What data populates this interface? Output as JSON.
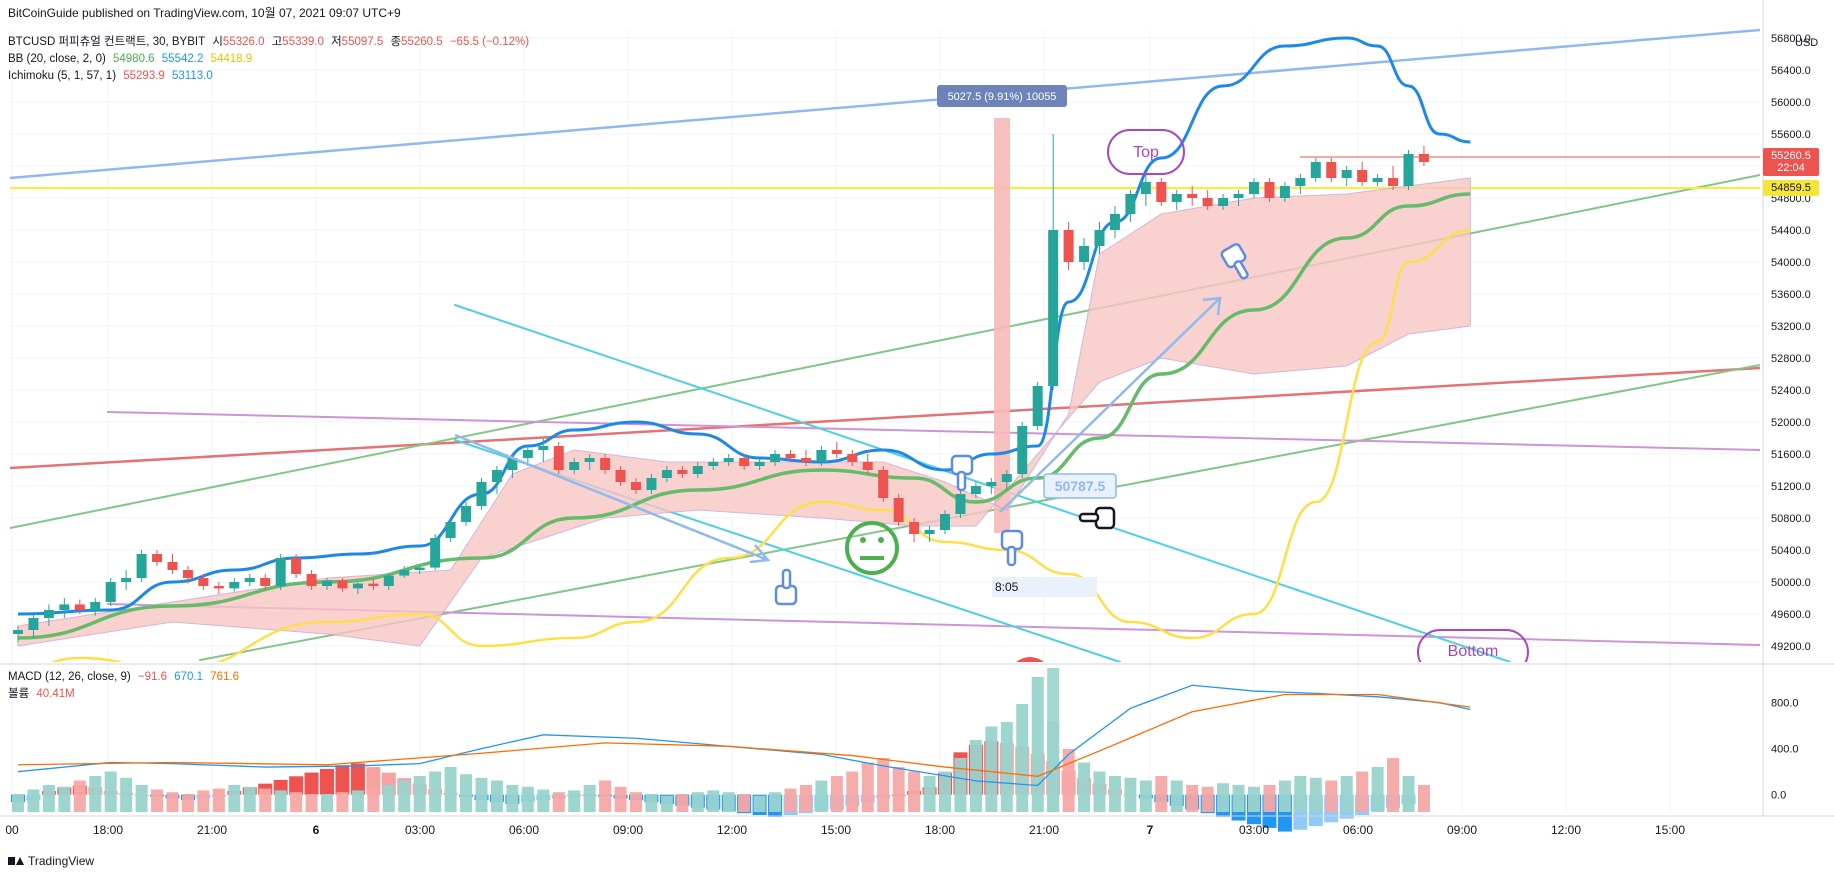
{
  "header": {
    "publish_line": "BitCoinGuide published on TradingView.com, 10월 07, 2021 09:07 UTC+9",
    "symbol": "BTCUSD 퍼피츄얼 컨트랙트, 30, BYBIT",
    "ohlc": {
      "o_label": "시",
      "o": "55326.0",
      "h_label": "고",
      "h": "55339.0",
      "l_label": "저",
      "l": "55097.5",
      "c_label": "종",
      "c": "55260.5",
      "change": "−65.5 (−0.12%)"
    },
    "bb": {
      "label": "BB (20, close, 2, 0)",
      "v1": "54980.6",
      "v2": "55542.2",
      "v3": "54418.9"
    },
    "ichimoku": {
      "label": "Ichimoku (5, 1, 57, 1)",
      "v1": "55293.9",
      "v2": "53113.0"
    },
    "macd": {
      "label": "MACD (12, 26, close, 9)",
      "v1": "−91.6",
      "v2": "670.1",
      "v3": "761.6"
    },
    "volume": {
      "label": "볼륨",
      "v1": "40.41M"
    }
  },
  "footer": {
    "brand": "TradingView"
  },
  "colors": {
    "up": "#26a69a",
    "down": "#ef5350",
    "bb_mid": "#5cb85c",
    "bb_upper": "#2196f3",
    "bb_lower": "#ffeb3b",
    "ichimoku_a": "#ef5350",
    "ichimoku_b": "#2196f3",
    "macd_line": "#2196f3",
    "signal_line": "#ff6d00",
    "cloud": "#f8c6c4",
    "price_tag": "#ef5350",
    "level_tag": "#f2e13a"
  },
  "chart_data": {
    "type": "candlestick",
    "y_axis": {
      "unit": "USD",
      "ticks": [
        "56800.0",
        "56400.0",
        "56000.0",
        "55600.0",
        "55200.0",
        "54800.0",
        "54400.0",
        "54000.0",
        "53600.0",
        "53200.0",
        "52800.0",
        "52400.0",
        "52000.0",
        "51600.0",
        "51200.0",
        "50800.0",
        "50400.0",
        "50000.0",
        "49600.0",
        "49200.0"
      ],
      "range": [
        49000,
        56900
      ]
    },
    "macd_axis": {
      "ticks": [
        "800.0",
        "400.0",
        "0.0"
      ]
    },
    "x_axis": {
      "ticks": [
        "00",
        "18:00",
        "21:00",
        "6",
        "03:00",
        "06:00",
        "09:00",
        "12:00",
        "15:00",
        "18:00",
        "21:00",
        "7",
        "03:00",
        "06:00",
        "09:00",
        "12:00",
        "15:00"
      ]
    },
    "last_price": {
      "value": "55260.5",
      "countdown": "22:04"
    },
    "level_line": {
      "value": "54859.5"
    },
    "annotations": {
      "measure_label": "5027.5 (9.91%) 10055",
      "price_label": "50787.5",
      "time_label": "8:05",
      "top_label": "Top",
      "bottom_label": "Bottom"
    },
    "candles": [
      [
        49350,
        49450,
        49250,
        49400
      ],
      [
        49400,
        49600,
        49300,
        49550
      ],
      [
        49550,
        49720,
        49450,
        49650
      ],
      [
        49650,
        49800,
        49550,
        49720
      ],
      [
        49720,
        49780,
        49600,
        49650
      ],
      [
        49650,
        49800,
        49580,
        49750
      ],
      [
        49750,
        50050,
        49700,
        50000
      ],
      [
        50000,
        50150,
        49900,
        50050
      ],
      [
        50050,
        50400,
        50000,
        50350
      ],
      [
        50350,
        50400,
        50200,
        50250
      ],
      [
        50250,
        50350,
        50100,
        50150
      ],
      [
        50150,
        50200,
        49980,
        50050
      ],
      [
        50050,
        50100,
        49900,
        49950
      ],
      [
        49950,
        50000,
        49850,
        49920
      ],
      [
        49920,
        50050,
        49880,
        50000
      ],
      [
        50000,
        50100,
        49950,
        50050
      ],
      [
        50050,
        50100,
        49900,
        49950
      ],
      [
        49950,
        50350,
        49900,
        50300
      ],
      [
        50300,
        50350,
        50050,
        50100
      ],
      [
        50100,
        50150,
        49900,
        49950
      ],
      [
        49950,
        50050,
        49900,
        50020
      ],
      [
        50020,
        50050,
        49880,
        49920
      ],
      [
        49920,
        50000,
        49850,
        49980
      ],
      [
        49980,
        50050,
        49900,
        49950
      ],
      [
        49950,
        50100,
        49900,
        50080
      ],
      [
        50080,
        50200,
        50050,
        50150
      ],
      [
        50150,
        50200,
        50100,
        50180
      ],
      [
        50180,
        50600,
        50150,
        50550
      ],
      [
        50550,
        50800,
        50500,
        50750
      ],
      [
        50750,
        51000,
        50700,
        50950
      ],
      [
        50950,
        51300,
        50900,
        51250
      ],
      [
        51250,
        51450,
        51100,
        51400
      ],
      [
        51400,
        51600,
        51300,
        51550
      ],
      [
        51550,
        51700,
        51450,
        51650
      ],
      [
        51650,
        51800,
        51500,
        51700
      ],
      [
        51700,
        51750,
        51350,
        51400
      ],
      [
        51400,
        51550,
        51350,
        51500
      ],
      [
        51500,
        51600,
        51400,
        51550
      ],
      [
        51550,
        51600,
        51350,
        51400
      ],
      [
        51400,
        51450,
        51200,
        51250
      ],
      [
        51250,
        51300,
        51100,
        51150
      ],
      [
        51150,
        51350,
        51100,
        51300
      ],
      [
        51300,
        51450,
        51250,
        51400
      ],
      [
        51400,
        51450,
        51300,
        51350
      ],
      [
        51350,
        51500,
        51300,
        51450
      ],
      [
        51450,
        51550,
        51400,
        51500
      ],
      [
        51500,
        51600,
        51450,
        51550
      ],
      [
        51550,
        51600,
        51400,
        51450
      ],
      [
        51450,
        51550,
        51400,
        51500
      ],
      [
        51500,
        51650,
        51450,
        51600
      ],
      [
        51600,
        51650,
        51500,
        51550
      ],
      [
        51550,
        51650,
        51450,
        51500
      ],
      [
        51500,
        51700,
        51450,
        51650
      ],
      [
        51650,
        51750,
        51550,
        51600
      ],
      [
        51600,
        51650,
        51450,
        51500
      ],
      [
        51500,
        51600,
        51350,
        51400
      ],
      [
        51400,
        51450,
        51000,
        51050
      ],
      [
        51050,
        51100,
        50700,
        50750
      ],
      [
        50750,
        50800,
        50500,
        50600
      ],
      [
        50600,
        50700,
        50500,
        50650
      ],
      [
        50650,
        50900,
        50600,
        50850
      ],
      [
        50850,
        51150,
        50800,
        51100
      ],
      [
        51100,
        51250,
        51050,
        51200
      ],
      [
        51200,
        51300,
        51100,
        51250
      ],
      [
        51250,
        51400,
        51150,
        51350
      ],
      [
        51350,
        52000,
        51300,
        51950
      ],
      [
        51950,
        52500,
        51900,
        52450
      ],
      [
        52450,
        55600,
        52400,
        54400
      ],
      [
        54400,
        54500,
        53900,
        54000
      ],
      [
        54000,
        54300,
        53900,
        54200
      ],
      [
        54200,
        54500,
        54100,
        54400
      ],
      [
        54400,
        54700,
        54300,
        54600
      ],
      [
        54600,
        54900,
        54500,
        54850
      ],
      [
        54850,
        55100,
        54700,
        55000
      ],
      [
        55000,
        55050,
        54700,
        54750
      ],
      [
        54750,
        54900,
        54650,
        54850
      ],
      [
        54850,
        54950,
        54700,
        54800
      ],
      [
        54800,
        54900,
        54650,
        54700
      ],
      [
        54700,
        54850,
        54650,
        54800
      ],
      [
        54800,
        54900,
        54700,
        54850
      ],
      [
        54850,
        55050,
        54800,
        55000
      ],
      [
        55000,
        55050,
        54750,
        54800
      ],
      [
        54800,
        55000,
        54750,
        54950
      ],
      [
        54950,
        55100,
        54850,
        55050
      ],
      [
        55050,
        55300,
        55000,
        55250
      ],
      [
        55250,
        55300,
        55000,
        55050
      ],
      [
        55050,
        55200,
        54950,
        55150
      ],
      [
        55150,
        55250,
        54950,
        55000
      ],
      [
        55000,
        55100,
        54950,
        55050
      ],
      [
        55050,
        55200,
        54900,
        54950
      ],
      [
        54950,
        55400,
        54900,
        55350
      ],
      [
        55350,
        55450,
        55200,
        55250
      ]
    ],
    "bb_upper": [
      [
        0,
        49600
      ],
      [
        6,
        49650
      ],
      [
        10,
        50000
      ],
      [
        14,
        50150
      ],
      [
        18,
        50300
      ],
      [
        22,
        50350
      ],
      [
        26,
        50450
      ],
      [
        30,
        51100
      ],
      [
        33,
        51700
      ],
      [
        36,
        51900
      ],
      [
        40,
        52000
      ],
      [
        44,
        51850
      ],
      [
        48,
        51550
      ],
      [
        52,
        51500
      ],
      [
        56,
        51650
      ],
      [
        60,
        51400
      ],
      [
        63,
        51600
      ],
      [
        66,
        51700
      ],
      [
        68,
        53500
      ],
      [
        71,
        54500
      ],
      [
        74,
        55300
      ],
      [
        78,
        56200
      ],
      [
        82,
        56700
      ],
      [
        86,
        56800
      ],
      [
        88,
        56700
      ],
      [
        90,
        56200
      ],
      [
        92,
        55600
      ],
      [
        94,
        55500
      ]
    ],
    "bb_mid": [
      [
        0,
        49300
      ],
      [
        10,
        49700
      ],
      [
        20,
        50000
      ],
      [
        30,
        50300
      ],
      [
        36,
        50800
      ],
      [
        44,
        51150
      ],
      [
        52,
        51400
      ],
      [
        58,
        51300
      ],
      [
        62,
        51000
      ],
      [
        66,
        51300
      ],
      [
        70,
        51800
      ],
      [
        74,
        52600
      ],
      [
        80,
        53400
      ],
      [
        86,
        54300
      ],
      [
        90,
        54700
      ],
      [
        94,
        54850
      ]
    ],
    "bb_lower": [
      [
        0,
        48900
      ],
      [
        4,
        49050
      ],
      [
        10,
        48900
      ],
      [
        20,
        49500
      ],
      [
        26,
        49600
      ],
      [
        30,
        49200
      ],
      [
        36,
        49300
      ],
      [
        40,
        49500
      ],
      [
        46,
        50300
      ],
      [
        52,
        51000
      ],
      [
        56,
        50900
      ],
      [
        60,
        50500
      ],
      [
        64,
        50400
      ],
      [
        68,
        50100
      ],
      [
        72,
        49500
      ],
      [
        76,
        49300
      ],
      [
        80,
        49600
      ],
      [
        84,
        51000
      ],
      [
        88,
        53000
      ],
      [
        90,
        54000
      ],
      [
        94,
        54400
      ]
    ],
    "macd": [
      [
        0,
        200
      ],
      [
        6,
        280
      ],
      [
        10,
        270
      ],
      [
        16,
        240
      ],
      [
        22,
        250
      ],
      [
        26,
        270
      ],
      [
        30,
        400
      ],
      [
        34,
        520
      ],
      [
        40,
        490
      ],
      [
        46,
        420
      ],
      [
        52,
        350
      ],
      [
        56,
        250
      ],
      [
        62,
        120
      ],
      [
        66,
        80
      ],
      [
        68,
        350
      ],
      [
        72,
        750
      ],
      [
        76,
        950
      ],
      [
        80,
        900
      ],
      [
        84,
        880
      ],
      [
        88,
        850
      ],
      [
        92,
        800
      ],
      [
        94,
        740
      ]
    ],
    "signal": [
      [
        0,
        260
      ],
      [
        10,
        280
      ],
      [
        20,
        260
      ],
      [
        30,
        360
      ],
      [
        38,
        450
      ],
      [
        46,
        420
      ],
      [
        54,
        340
      ],
      [
        60,
        240
      ],
      [
        66,
        160
      ],
      [
        70,
        380
      ],
      [
        76,
        720
      ],
      [
        82,
        870
      ],
      [
        88,
        870
      ],
      [
        94,
        760
      ]
    ],
    "histogram": [
      -40,
      -30,
      20,
      40,
      50,
      40,
      20,
      10,
      0,
      -10,
      -20,
      -30,
      -20,
      -10,
      20,
      40,
      60,
      80,
      100,
      120,
      140,
      160,
      170,
      150,
      120,
      90,
      60,
      30,
      10,
      -10,
      -30,
      -40,
      -50,
      -40,
      -30,
      -20,
      -10,
      0,
      -10,
      -20,
      -30,
      -40,
      -50,
      -60,
      -70,
      -80,
      -90,
      -100,
      -110,
      -120,
      -110,
      -100,
      -90,
      -80,
      -60,
      -40,
      -20,
      0,
      20,
      40,
      120,
      230,
      270,
      290,
      280,
      260,
      220,
      180,
      130,
      90,
      60,
      30,
      0,
      -20,
      -40,
      -60,
      -80,
      -100,
      -120,
      -140,
      -160,
      -180,
      -200,
      -190,
      -170,
      -150,
      -130,
      -110,
      -90,
      -70,
      -50
    ],
    "volume": [
      20,
      25,
      30,
      28,
      35,
      40,
      45,
      38,
      30,
      25,
      22,
      20,
      24,
      26,
      30,
      28,
      26,
      24,
      22,
      20,
      20,
      22,
      24,
      26,
      30,
      35,
      40,
      45,
      50,
      42,
      38,
      35,
      30,
      28,
      25,
      22,
      24,
      30,
      35,
      28,
      22,
      20,
      18,
      20,
      22,
      24,
      22,
      20,
      18,
      22,
      26,
      30,
      35,
      40,
      45,
      55,
      60,
      50,
      45,
      40,
      45,
      60,
      80,
      95,
      100,
      120,
      150,
      100,
      70,
      55,
      45,
      40,
      38,
      35,
      40,
      35,
      30,
      28,
      32,
      30,
      28,
      30,
      35,
      40,
      38,
      35,
      40,
      45,
      50,
      60,
      40,
      30
    ]
  }
}
